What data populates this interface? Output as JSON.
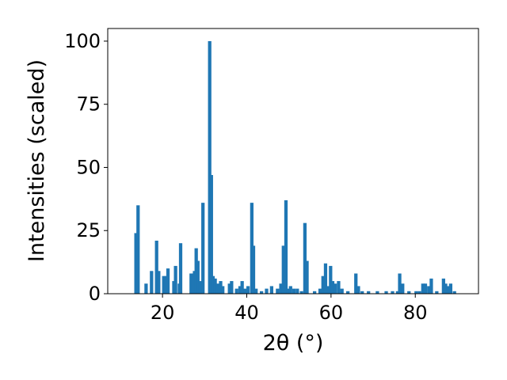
{
  "chart_data": {
    "type": "bar",
    "xlabel": "2θ (°)",
    "ylabel": "Intensities (scaled)",
    "xlim": [
      7,
      95
    ],
    "ylim": [
      0,
      105
    ],
    "xticks": [
      20,
      40,
      60,
      80
    ],
    "yticks": [
      0,
      25,
      50,
      75,
      100
    ],
    "bar_width": 0.8,
    "color": "#1f77b4",
    "grid": false,
    "x": [
      13.7,
      14.2,
      16.1,
      17.4,
      18.6,
      19.1,
      20.3,
      20.9,
      21.3,
      22.7,
      23.1,
      24.0,
      24.3,
      26.8,
      27.2,
      27.6,
      28.0,
      28.4,
      28.9,
      29.6,
      31.2,
      31.6,
      32.0,
      32.5,
      33.1,
      33.8,
      34.3,
      35.9,
      36.4,
      37.6,
      38.4,
      38.9,
      39.6,
      40.3,
      41.2,
      41.6,
      42.2,
      43.5,
      44.7,
      45.9,
      47.3,
      48.1,
      48.7,
      49.3,
      49.8,
      50.4,
      51.2,
      52.0,
      53.0,
      53.8,
      54.3,
      56.1,
      57.4,
      58.1,
      58.7,
      59.2,
      59.9,
      60.4,
      61.0,
      61.8,
      62.6,
      64.0,
      65.9,
      66.5,
      67.4,
      68.9,
      71.0,
      73.1,
      74.6,
      75.8,
      76.3,
      77.0,
      78.5,
      80.2,
      81.0,
      81.8,
      82.4,
      83.2,
      83.8,
      85.1,
      86.7,
      87.2,
      87.8,
      88.4,
      89.3
    ],
    "values": [
      24,
      35,
      4,
      9,
      21,
      9,
      7,
      7,
      10,
      5,
      11,
      4,
      20,
      8,
      8,
      9,
      18,
      13,
      5,
      36,
      100,
      47,
      7,
      6,
      4,
      5,
      3,
      4,
      5,
      2,
      3,
      5,
      2,
      3,
      36,
      19,
      2,
      1,
      2,
      3,
      2,
      4,
      19,
      37,
      2,
      3,
      2,
      2,
      1,
      28,
      13,
      1,
      2,
      7,
      12,
      3,
      11,
      5,
      4,
      5,
      2,
      1,
      8,
      3,
      1,
      1,
      1,
      1,
      1,
      1,
      8,
      4,
      1,
      1,
      1,
      4,
      4,
      3,
      6,
      1,
      6,
      4,
      3,
      4,
      1
    ]
  }
}
